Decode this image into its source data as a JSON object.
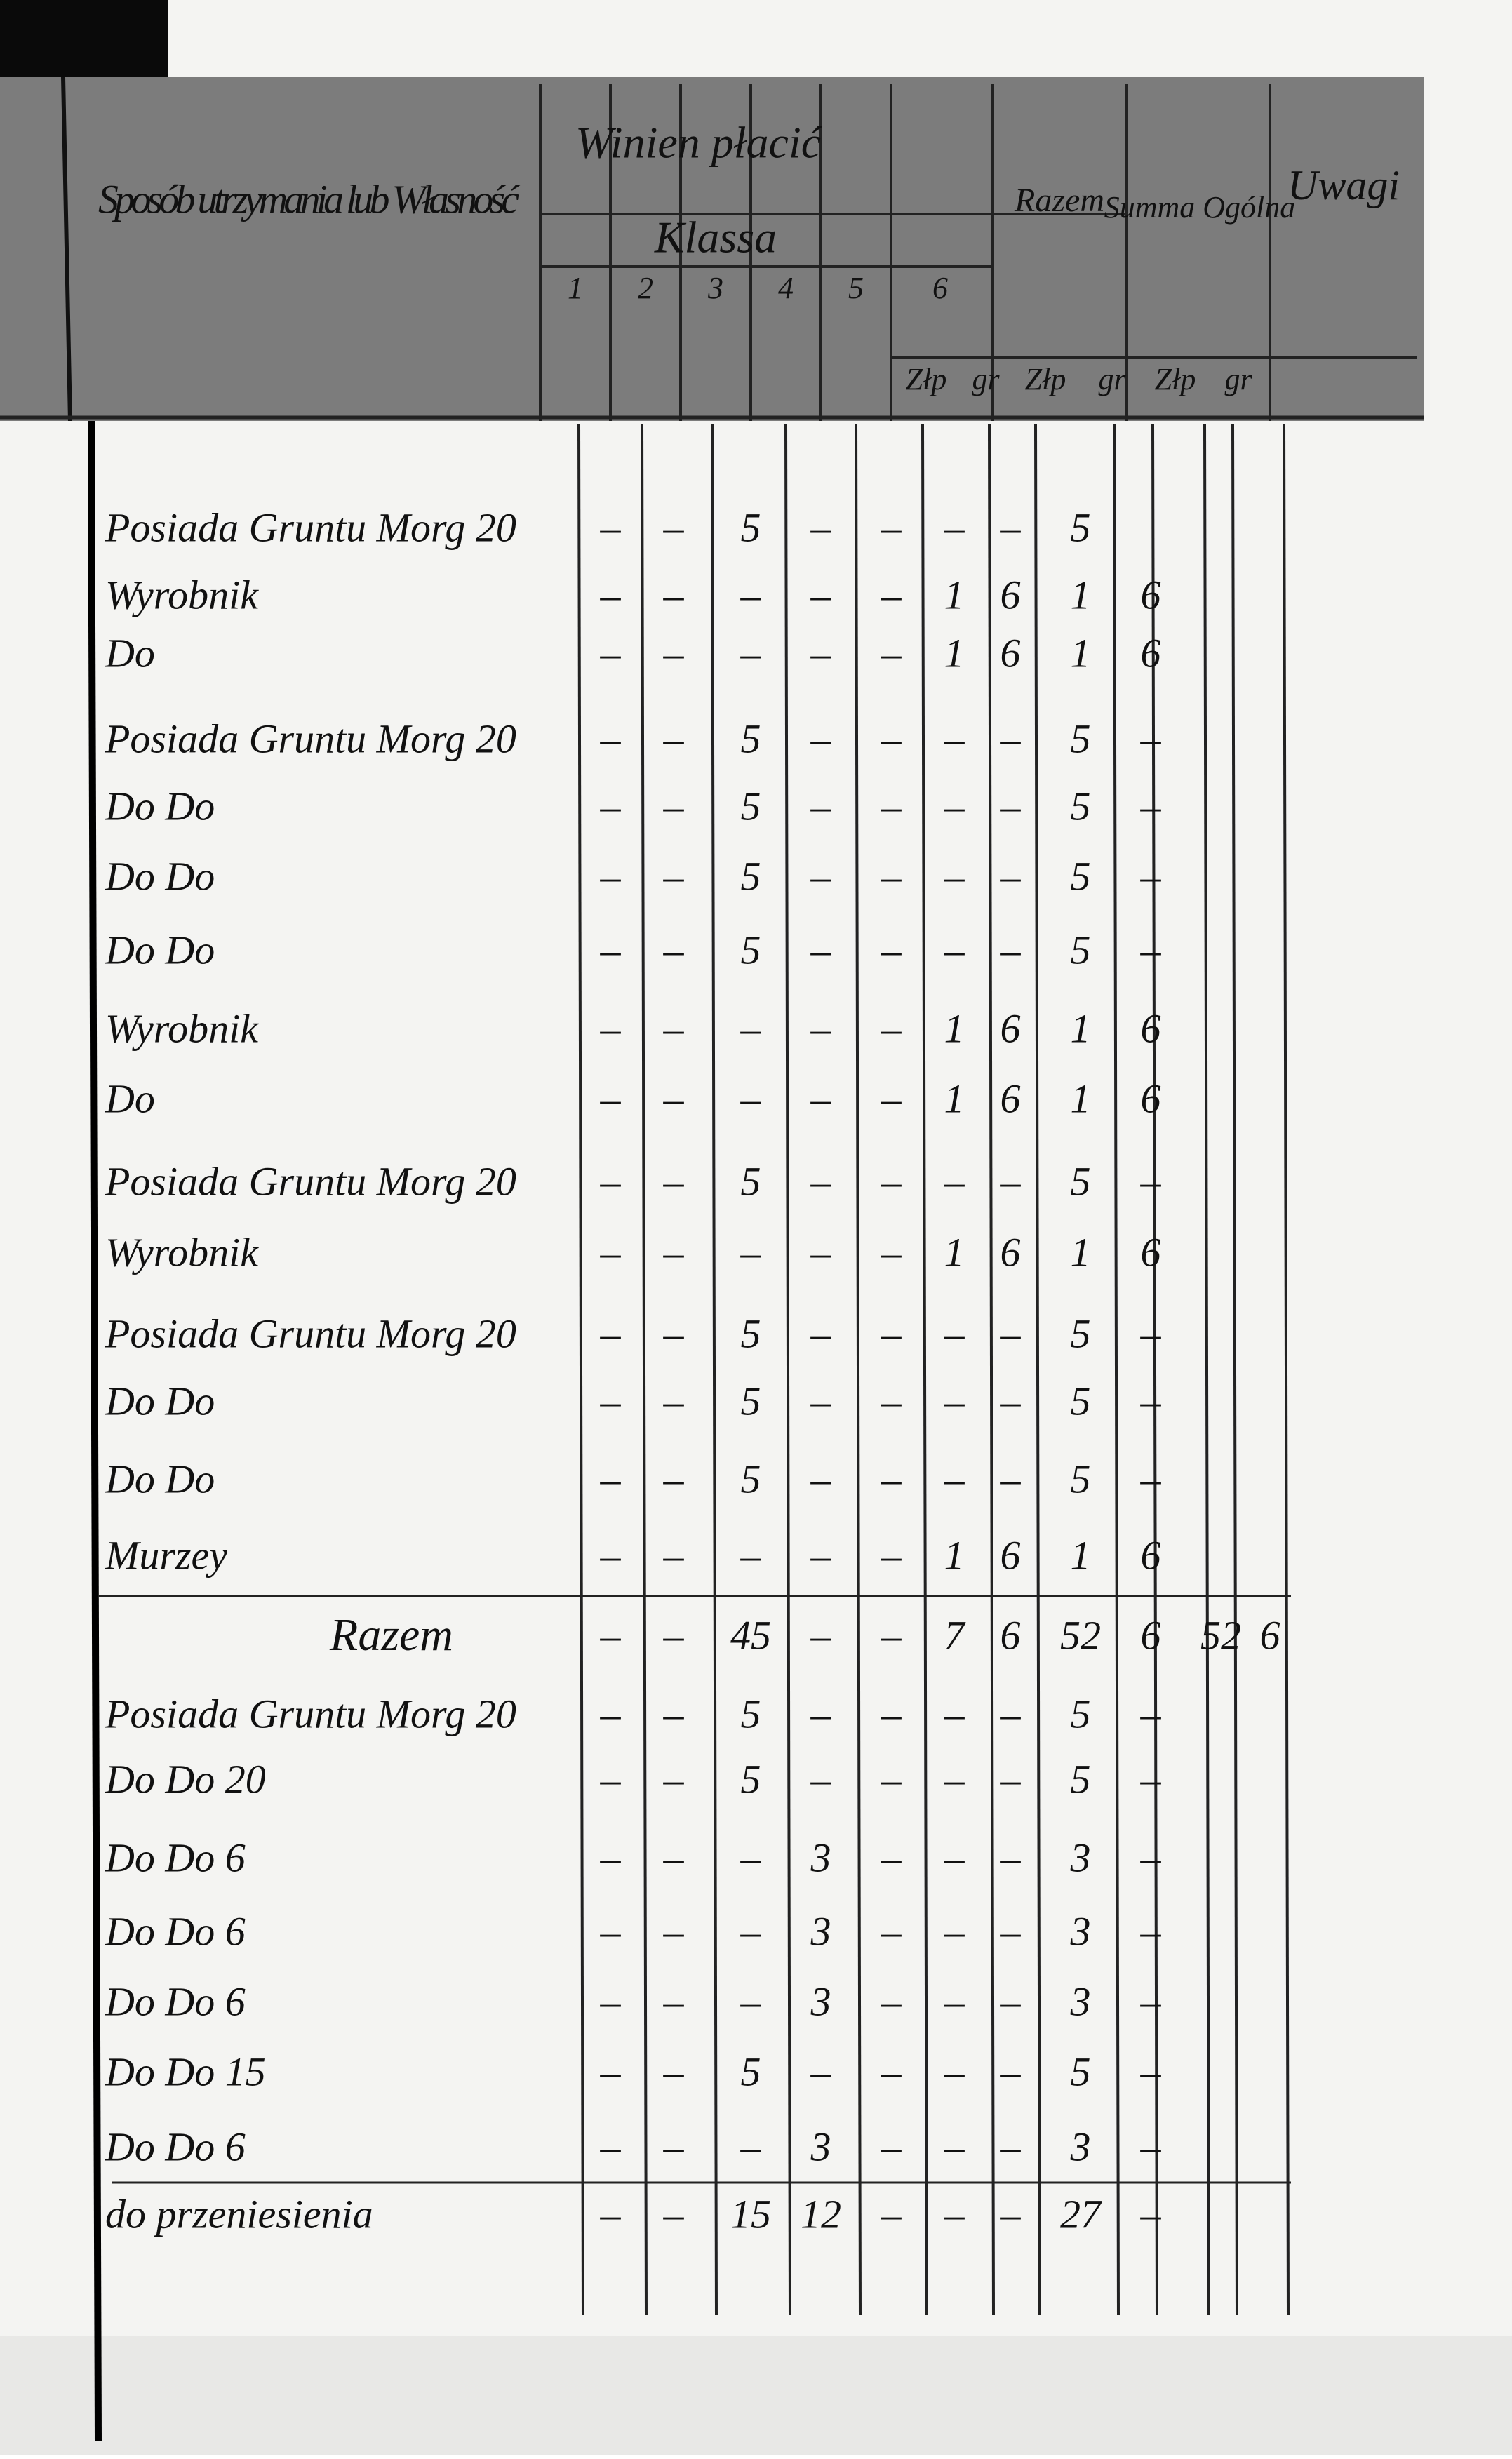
{
  "header": {
    "description": "Sposób utrzymania lub Własność",
    "owes": "Winien płacić",
    "class": "Klassa",
    "class_numbers": [
      "1",
      "2",
      "3",
      "4",
      "5",
      "6"
    ],
    "total": "Razem",
    "grand_total": "Summa Ogólna",
    "remarks": "Uwagi",
    "units": [
      "Złp",
      "gr",
      "Złp",
      "gr",
      "Złp",
      "gr"
    ]
  },
  "table": {
    "rows": [
      {
        "label": "Posiada Gruntu Morg 20",
        "cells": [
          "–",
          "–",
          "5",
          "–",
          "–",
          "–",
          "–",
          "5",
          null,
          null,
          null
        ]
      },
      {
        "label": "Wyrobnik",
        "cells": [
          "–",
          "–",
          "–",
          "–",
          "–",
          "1",
          "6",
          "1",
          "6",
          null,
          null
        ]
      },
      {
        "label": "Do",
        "cells": [
          "–",
          "–",
          "–",
          "–",
          "–",
          "1",
          "6",
          "1",
          "6",
          null,
          null
        ]
      },
      {
        "label": "Posiada Gruntu Morg 20",
        "cells": [
          "–",
          "–",
          "5",
          "–",
          "–",
          "–",
          "–",
          "5",
          "–",
          null,
          null
        ]
      },
      {
        "label": "Do      Do",
        "cells": [
          "–",
          "–",
          "5",
          "–",
          "–",
          "–",
          "–",
          "5",
          "–",
          null,
          null
        ]
      },
      {
        "label": "Do      Do",
        "cells": [
          "–",
          "–",
          "5",
          "–",
          "–",
          "–",
          "–",
          "5",
          "–",
          null,
          null
        ]
      },
      {
        "label": "Do      Do",
        "cells": [
          "–",
          "–",
          "5",
          "–",
          "–",
          "–",
          "–",
          "5",
          "–",
          null,
          null
        ]
      },
      {
        "label": "Wyrobnik",
        "cells": [
          "–",
          "–",
          "–",
          "–",
          "–",
          "1",
          "6",
          "1",
          "6",
          null,
          null
        ]
      },
      {
        "label": "Do",
        "cells": [
          "–",
          "–",
          "–",
          "–",
          "–",
          "1",
          "6",
          "1",
          "6",
          null,
          null
        ]
      },
      {
        "label": "Posiada Gruntu Morg 20",
        "cells": [
          "–",
          "–",
          "5",
          "–",
          "–",
          "–",
          "–",
          "5",
          "–",
          null,
          null
        ]
      },
      {
        "label": "Wyrobnik",
        "cells": [
          "–",
          "–",
          "–",
          "–",
          "–",
          "1",
          "6",
          "1",
          "6",
          null,
          null
        ]
      },
      {
        "label": "Posiada Gruntu Morg 20",
        "cells": [
          "–",
          "–",
          "5",
          "–",
          "–",
          "–",
          "–",
          "5",
          "–",
          null,
          null
        ]
      },
      {
        "label": "Do      Do",
        "cells": [
          "–",
          "–",
          "5",
          "–",
          "–",
          "–",
          "–",
          "5",
          "–",
          null,
          null
        ]
      },
      {
        "label": "Do      Do",
        "cells": [
          "–",
          "–",
          "5",
          "–",
          "–",
          "–",
          "–",
          "5",
          "–",
          null,
          null
        ]
      },
      {
        "label": "Murzey",
        "cells": [
          "–",
          "–",
          "–",
          "–",
          "–",
          "1",
          "6",
          "1",
          "6",
          null,
          null
        ]
      },
      {
        "label": "Razem",
        "cells": [
          "–",
          "–",
          "45",
          "–",
          "–",
          "7",
          "6",
          "52",
          "6",
          "52",
          "6"
        ]
      },
      {
        "label": "Posiada Gruntu Morg 20",
        "cells": [
          "–",
          "–",
          "5",
          "–",
          "–",
          "–",
          "–",
          "5",
          "–",
          null,
          null
        ]
      },
      {
        "label": "Do      Do      20",
        "cells": [
          "–",
          "–",
          "5",
          "–",
          "–",
          "–",
          "–",
          "5",
          "–",
          null,
          null
        ]
      },
      {
        "label": "Do      Do      6",
        "cells": [
          "–",
          "–",
          "–",
          "3",
          "–",
          "–",
          "–",
          "3",
          "–",
          null,
          null
        ]
      },
      {
        "label": "Do      Do      6",
        "cells": [
          "–",
          "–",
          "–",
          "3",
          "–",
          "–",
          "–",
          "3",
          "–",
          null,
          null
        ]
      },
      {
        "label": "Do      Do      6",
        "cells": [
          "–",
          "–",
          "–",
          "3",
          "–",
          "–",
          "–",
          "3",
          "–",
          null,
          null
        ]
      },
      {
        "label": "Do      Do      15",
        "cells": [
          "–",
          "–",
          "5",
          "–",
          "–",
          "–",
          "–",
          "5",
          "–",
          null,
          null
        ]
      },
      {
        "label": "Do      Do      6",
        "cells": [
          "–",
          "–",
          "–",
          "3",
          "–",
          "–",
          "–",
          "3",
          "–",
          null,
          null
        ]
      },
      {
        "label": "do przeniesienia",
        "cells": [
          "–",
          "–",
          "15",
          "12",
          "–",
          "–",
          "–",
          "27",
          "–",
          null,
          null
        ]
      }
    ]
  }
}
